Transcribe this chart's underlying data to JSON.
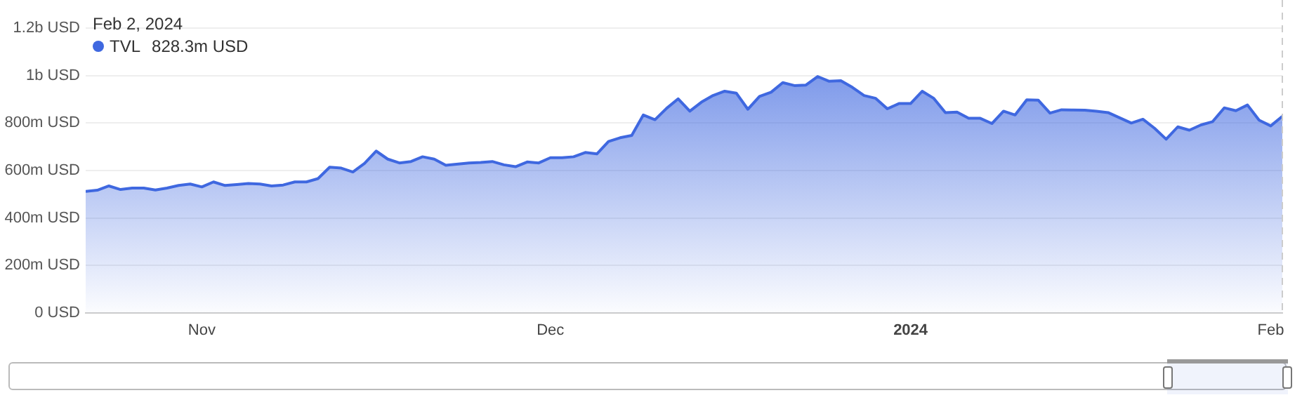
{
  "chart_data": {
    "type": "area",
    "title": "Feb 2, 2024",
    "x": [
      "2023-10-22",
      "2023-10-23",
      "2023-10-24",
      "2023-10-25",
      "2023-10-26",
      "2023-10-27",
      "2023-10-28",
      "2023-10-29",
      "2023-10-30",
      "2023-10-31",
      "2023-11-01",
      "2023-11-02",
      "2023-11-03",
      "2023-11-04",
      "2023-11-05",
      "2023-11-06",
      "2023-11-07",
      "2023-11-08",
      "2023-11-09",
      "2023-11-10",
      "2023-11-11",
      "2023-11-12",
      "2023-11-13",
      "2023-11-14",
      "2023-11-15",
      "2023-11-16",
      "2023-11-17",
      "2023-11-18",
      "2023-11-19",
      "2023-11-20",
      "2023-11-21",
      "2023-11-22",
      "2023-11-24",
      "2023-11-25",
      "2023-11-26",
      "2023-11-27",
      "2023-11-28",
      "2023-11-29",
      "2023-11-30",
      "2023-12-01",
      "2023-12-02",
      "2023-12-03",
      "2023-12-04",
      "2023-12-05",
      "2023-12-06",
      "2023-12-07",
      "2023-12-08",
      "2023-12-09",
      "2023-12-10",
      "2023-12-11",
      "2023-12-12",
      "2023-12-13",
      "2023-12-14",
      "2023-12-15",
      "2023-12-16",
      "2023-12-17",
      "2023-12-18",
      "2023-12-19",
      "2023-12-20",
      "2023-12-21",
      "2023-12-22",
      "2023-12-23",
      "2023-12-24",
      "2023-12-25",
      "2023-12-26",
      "2023-12-27",
      "2023-12-28",
      "2023-12-29",
      "2023-12-30",
      "2023-12-31",
      "2024-01-01",
      "2024-01-02",
      "2024-01-03",
      "2024-01-04",
      "2024-01-05",
      "2024-01-06",
      "2024-01-07",
      "2024-01-08",
      "2024-01-09",
      "2024-01-10",
      "2024-01-11",
      "2024-01-12",
      "2024-01-13",
      "2024-01-14",
      "2024-01-15",
      "2024-01-16",
      "2024-01-17",
      "2024-01-18",
      "2024-01-19",
      "2024-01-20",
      "2024-01-21",
      "2024-01-22",
      "2024-01-23",
      "2024-01-24",
      "2024-01-25",
      "2024-01-26",
      "2024-01-27",
      "2024-01-28",
      "2024-01-29",
      "2024-01-30",
      "2024-01-31",
      "2024-02-01",
      "2024-02-02"
    ],
    "series": [
      {
        "name": "TVL",
        "color": "#3f68e0",
        "values": [
          512000000,
          517000000,
          535000000,
          520000000,
          526000000,
          526000000,
          518000000,
          526000000,
          537000000,
          543000000,
          531000000,
          552000000,
          537000000,
          541000000,
          545000000,
          543000000,
          535000000,
          539000000,
          552000000,
          552000000,
          566000000,
          614000000,
          610000000,
          594000000,
          630000000,
          682000000,
          648000000,
          632000000,
          638000000,
          658000000,
          648000000,
          622000000,
          632000000,
          634000000,
          638000000,
          624000000,
          616000000,
          636000000,
          632000000,
          654000000,
          654000000,
          658000000,
          676000000,
          670000000,
          722000000,
          738000000,
          748000000,
          834000000,
          814000000,
          862000000,
          902000000,
          850000000,
          888000000,
          916000000,
          934000000,
          926000000,
          858000000,
          912000000,
          930000000,
          970000000,
          958000000,
          960000000,
          996000000,
          976000000,
          978000000,
          950000000,
          916000000,
          904000000,
          860000000,
          882000000,
          882000000,
          934000000,
          904000000,
          844000000,
          846000000,
          820000000,
          820000000,
          798000000,
          850000000,
          834000000,
          898000000,
          896000000,
          842000000,
          856000000,
          855000000,
          854000000,
          850000000,
          844000000,
          822000000,
          800000000,
          816000000,
          778000000,
          732000000,
          784000000,
          770000000,
          792000000,
          806000000,
          864000000,
          852000000,
          876000000,
          812000000,
          788000000,
          828300000
        ]
      }
    ],
    "annotations": [
      "828.3m USD"
    ],
    "xlim": [
      "2023-10-22",
      "2024-02-02"
    ],
    "xticks": [
      {
        "value": "2023-11-01",
        "label": "Nov"
      },
      {
        "value": "2023-12-01",
        "label": "Dec"
      },
      {
        "value": "2024-01-01",
        "label": "2024"
      },
      {
        "value": "2024-02-01",
        "label": "Feb"
      }
    ],
    "ylim": [
      0,
      1200000000
    ],
    "yticks": [
      {
        "value": 0,
        "label": "0 USD"
      },
      {
        "value": 200000000,
        "label": "200m USD"
      },
      {
        "value": 400000000,
        "label": "400m USD"
      },
      {
        "value": 600000000,
        "label": "600m USD"
      },
      {
        "value": 800000000,
        "label": "800m USD"
      },
      {
        "value": 1000000000,
        "label": "1b USD"
      },
      {
        "value": 1200000000,
        "label": "1.2b USD"
      }
    ],
    "ref_lines": [
      {
        "axis": "x",
        "value": "2024-02-02",
        "color": "#cccccc",
        "line_style": "dashed"
      }
    ],
    "grid": "y",
    "legend": "top left",
    "marker": "none",
    "line_style": "solid"
  }
}
